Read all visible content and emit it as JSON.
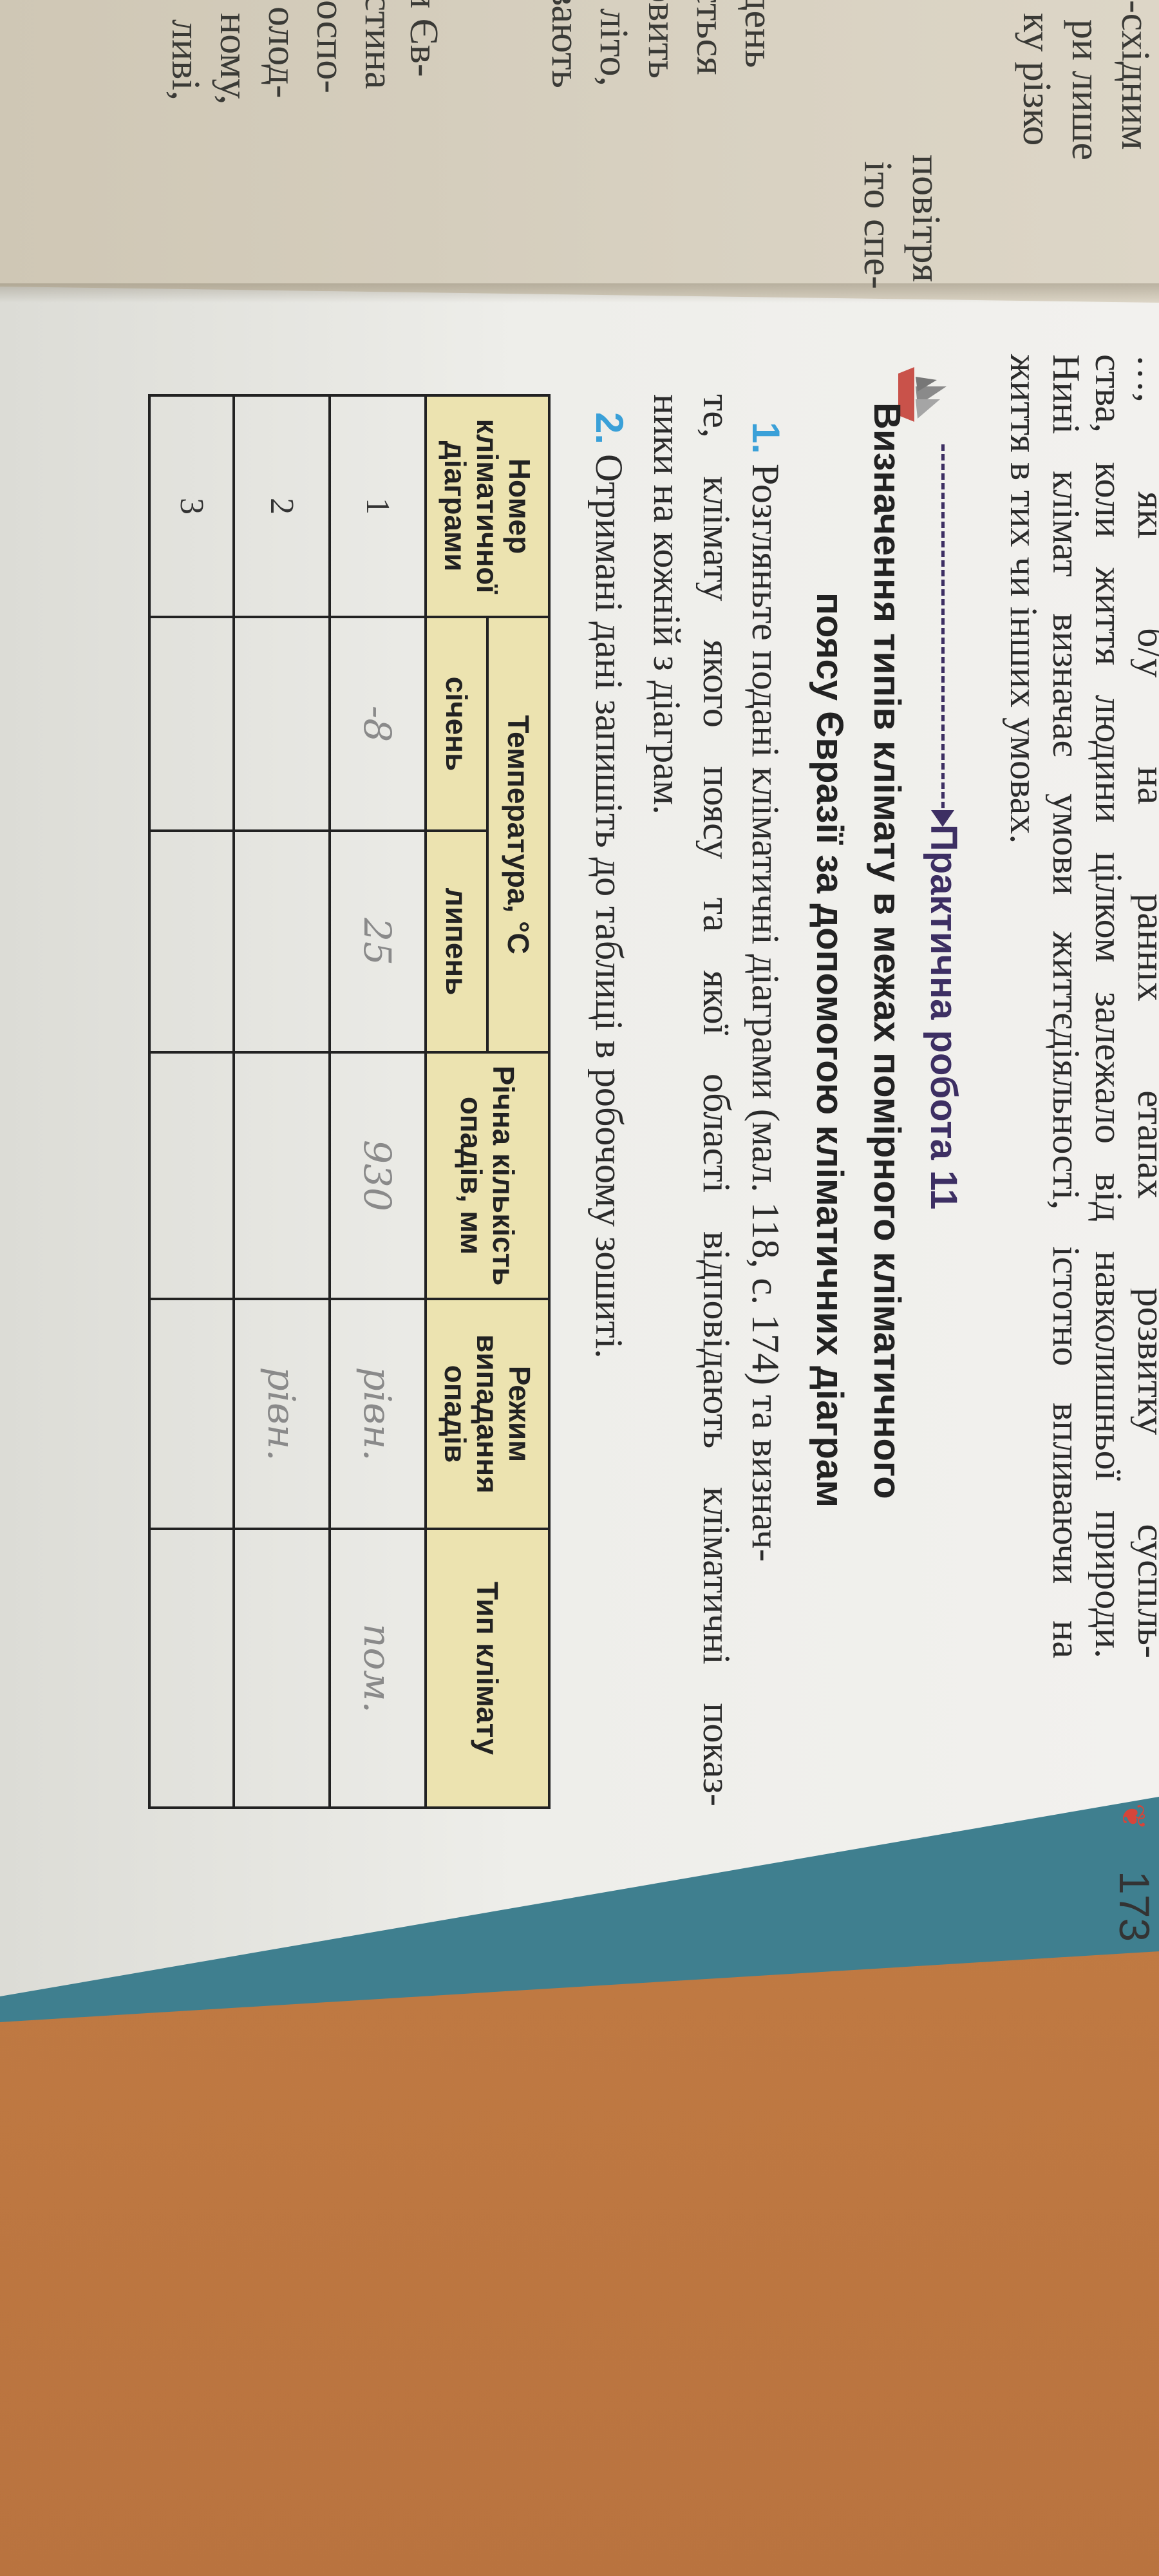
{
  "left_page": {
    "fragments": [
      "-східним",
      "ри лише",
      "ку різко",
      "повітря",
      "іто спе-",
      "івдень",
      "яється",
      "новить",
      "е літо,",
      "вають",
      "и Єв-",
      "стина",
      "оспо-",
      "олод-",
      "ному,",
      "ливі,"
    ]
  },
  "intro": {
    "lines": [
      "…, які б/у на ранніх етапах розвитку суспіль-",
      "ства, коли життя людини цілком залежало від навколишньої природи.",
      "Нині клімат визначає умови життєдіяльності, істотно впливаючи на",
      "життя в тих чи інших умовах."
    ]
  },
  "practical": {
    "label": "Практична робота 11",
    "title_line1": "Визначення типів клімату в межах помірного кліматичного",
    "title_line2": "поясу Євразії за допомогою кліматичних діаграм"
  },
  "tasks": [
    {
      "number": "1.",
      "lines": [
        "Розгляньте подані кліматичні діаграми (мал. 118, с. 174) та визнач-",
        "те, клімату якого поясу та якої області відповідають кліматичні показ-",
        "ники на кожній з діаграм."
      ]
    },
    {
      "number": "2.",
      "lines": [
        "Отримані дані запишіть до таблиці в робочому зошиті."
      ]
    }
  ],
  "table": {
    "headers": {
      "number": "Номер кліматичної діаграми",
      "temperature": "Температура, °С",
      "january": "січень",
      "july": "липень",
      "precipitation": "Річна кількість опадів, мм",
      "regime": "Режим випадання опадів",
      "type": "Тип клімату"
    },
    "rows": [
      {
        "number": "1",
        "january": "-8",
        "july": "25",
        "precipitation": "930",
        "regime": "рівн.",
        "type": "пом."
      },
      {
        "number": "2",
        "january": "",
        "july": "",
        "precipitation": "",
        "regime": "рівн.",
        "type": ""
      },
      {
        "number": "3",
        "january": "",
        "july": "",
        "precipitation": "",
        "regime": "",
        "type": ""
      }
    ]
  },
  "page_number": "173",
  "colors": {
    "header_fill": "#ece3b0",
    "task_number": "#3aa0d8",
    "practical_label": "#3d2f63",
    "wood": "#c98347",
    "cover": "#3f7f8f"
  }
}
